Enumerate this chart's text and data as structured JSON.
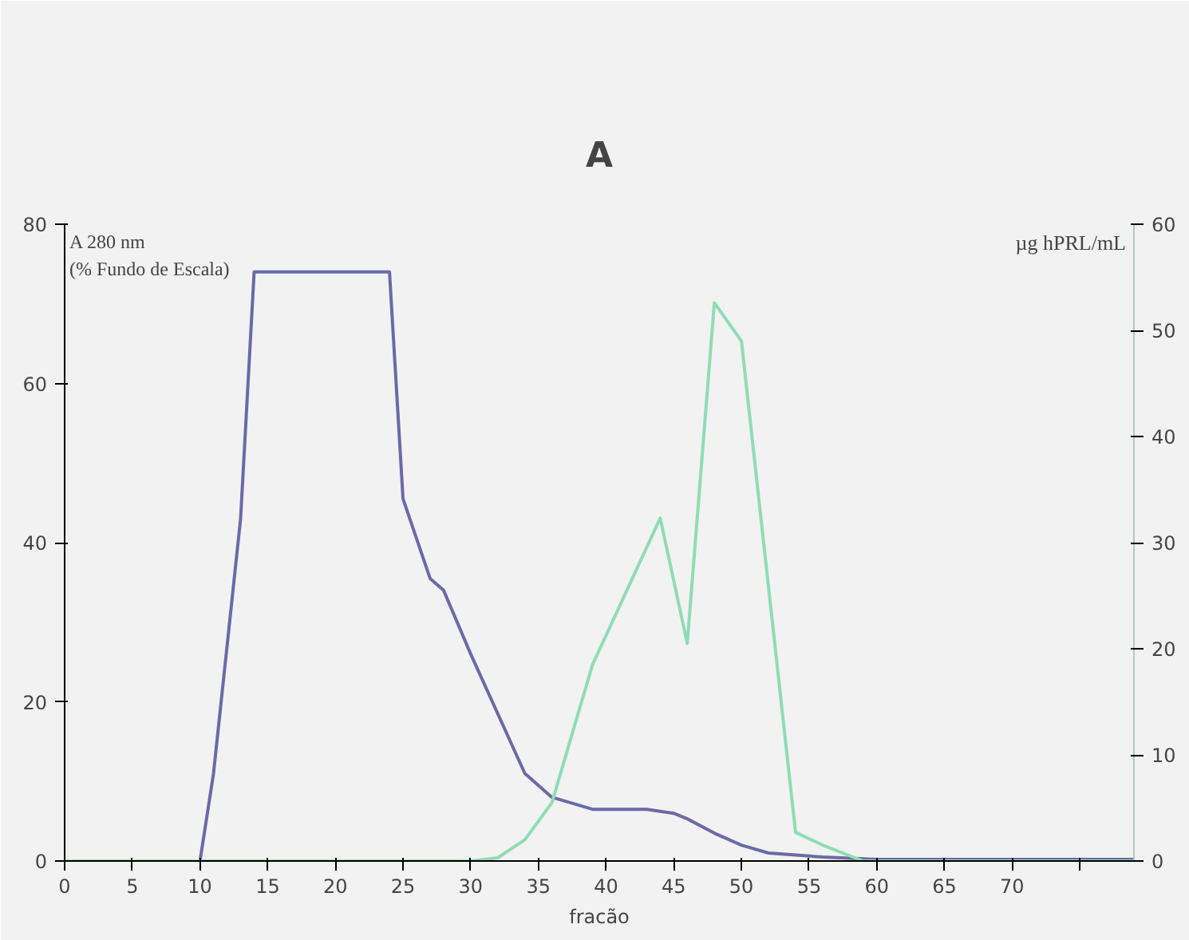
{
  "chart_data": {
    "type": "line",
    "title": "A",
    "xlabel": "fracão",
    "ylabel": "A 280 nm\n(% Fundo de Escala)",
    "y2label": "µg hPRL/mL",
    "xlim": [
      0,
      79
    ],
    "xticks": [
      0,
      5,
      10,
      15,
      20,
      25,
      30,
      35,
      40,
      45,
      50,
      55,
      60,
      65,
      70,
      {
        "value": 75,
        "label": null
      }
    ],
    "ylim": [
      0,
      80
    ],
    "yticks": [
      0,
      20,
      40,
      60,
      80
    ],
    "y2lim": [
      0,
      60
    ],
    "y2ticks": [
      0,
      10,
      20,
      30,
      40,
      50,
      60
    ],
    "grid": false,
    "marker": "none",
    "line_style": "solid",
    "series": [
      {
        "color": "#6a6aa8",
        "x": [
          0,
          10,
          11,
          13,
          14,
          24,
          25,
          27,
          28,
          30,
          34,
          36,
          39,
          43,
          45,
          46,
          48,
          50,
          52,
          56,
          60,
          79
        ],
        "values": [
          0,
          0,
          11,
          43,
          74,
          74,
          45.5,
          35.5,
          34,
          26,
          11,
          8,
          6.5,
          6.5,
          6,
          5.3,
          3.5,
          2,
          1,
          0.5,
          0.2,
          0.2
        ]
      },
      {
        "color": "#8fdcb4",
        "axis": "y2",
        "x": [
          0,
          30,
          32,
          34,
          36,
          39,
          44,
          46,
          48,
          50,
          54,
          56,
          59,
          79
        ],
        "values": [
          0,
          0,
          0.3,
          2,
          5.5,
          18.5,
          32.3,
          20.5,
          52.6,
          49,
          2.7,
          1.5,
          0,
          0
        ]
      }
    ]
  }
}
